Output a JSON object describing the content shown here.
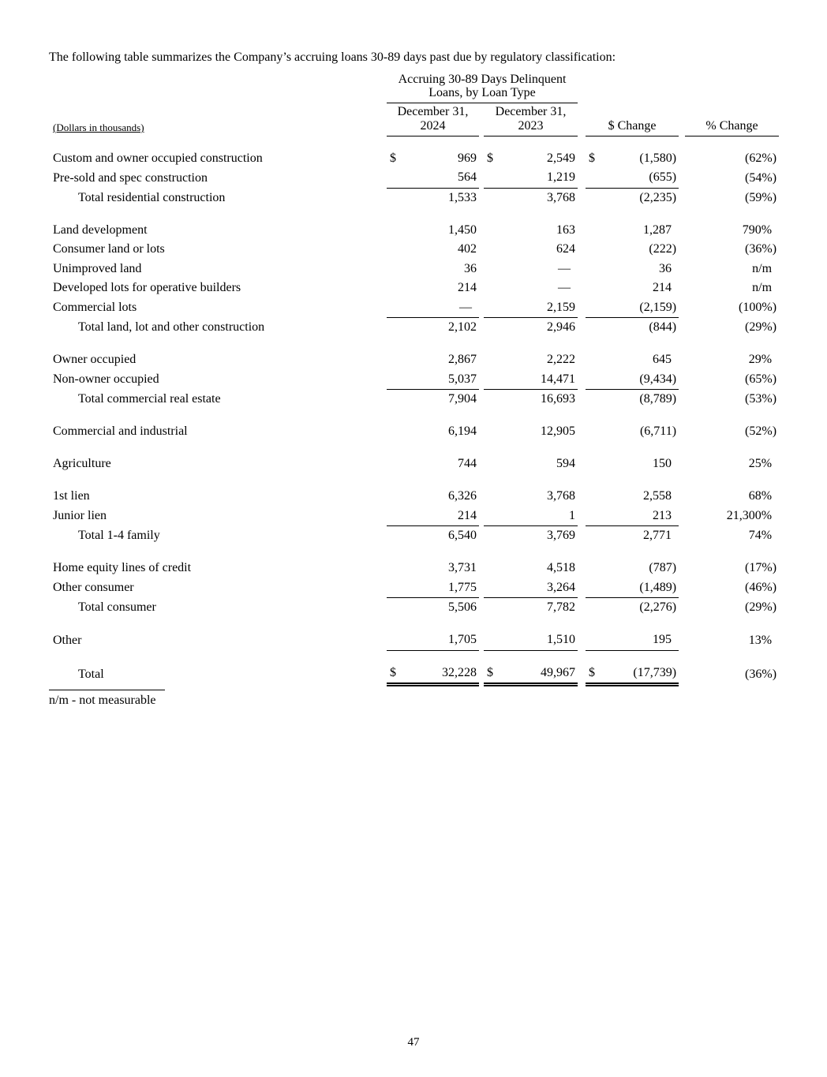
{
  "page": {
    "intro": "The following table summarizes the Company’s accruing loans 30-89 days past due by regulatory classification:",
    "footnote": "n/m - not measurable",
    "page_number": "47",
    "text_color": "#000000"
  },
  "table": {
    "group_header": {
      "line1": "Accruing 30-89 Days Delinquent",
      "line2": "Loans, by Loan Type"
    },
    "left_header": "(Dollars in thousands)",
    "col_headers": [
      {
        "line1": "December 31,",
        "line2": "2024"
      },
      {
        "line1": "December 31,",
        "line2": "2023"
      },
      {
        "label": "$ Change"
      },
      {
        "label": "% Change"
      }
    ],
    "rows": [
      {
        "label": "Custom and owner occupied construction",
        "d1": "$",
        "v1": "969",
        "d2": "$",
        "v2": "2,549",
        "d3": "$",
        "v3": "(1,580)",
        "pct": "(62%)"
      },
      {
        "label": "Pre-sold and spec construction",
        "v1": "564",
        "v2": "1,219",
        "v3": "(655)",
        "pct": "(54%)",
        "rule": "single"
      },
      {
        "label": "Total residential construction",
        "indent": true,
        "v1": "1,533",
        "v2": "3,768",
        "v3": "(2,235)",
        "pct": "(59%)"
      },
      {
        "type": "spacer"
      },
      {
        "label": "Land development",
        "v1": "1,450",
        "v2": "163",
        "v3": "1,287",
        "pct": "790%"
      },
      {
        "label": "Consumer land or lots",
        "v1": "402",
        "v2": "624",
        "v3": "(222)",
        "pct": "(36%)"
      },
      {
        "label": "Unimproved land",
        "v1": "36",
        "v2": "—",
        "v3": "36",
        "pct": "n/m"
      },
      {
        "label": "Developed lots for operative builders",
        "v1": "214",
        "v2": "—",
        "v3": "214",
        "pct": "n/m"
      },
      {
        "label": "Commercial lots",
        "v1": "—",
        "v2": "2,159",
        "v3": "(2,159)",
        "pct": "(100%)",
        "rule": "single"
      },
      {
        "label": "Total land, lot and other construction",
        "indent": true,
        "v1": "2,102",
        "v2": "2,946",
        "v3": "(844)",
        "pct": "(29%)"
      },
      {
        "type": "spacer"
      },
      {
        "label": "Owner occupied",
        "v1": "2,867",
        "v2": "2,222",
        "v3": "645",
        "pct": "29%"
      },
      {
        "label": "Non-owner occupied",
        "v1": "5,037",
        "v2": "14,471",
        "v3": "(9,434)",
        "pct": "(65%)",
        "rule": "single"
      },
      {
        "label": "Total commercial real estate",
        "indent": true,
        "v1": "7,904",
        "v2": "16,693",
        "v3": "(8,789)",
        "pct": "(53%)"
      },
      {
        "type": "spacer"
      },
      {
        "label": "Commercial and industrial",
        "v1": "6,194",
        "v2": "12,905",
        "v3": "(6,711)",
        "pct": "(52%)"
      },
      {
        "type": "spacer"
      },
      {
        "label": "Agriculture",
        "v1": "744",
        "v2": "594",
        "v3": "150",
        "pct": "25%"
      },
      {
        "type": "spacer"
      },
      {
        "label": "1st lien",
        "v1": "6,326",
        "v2": "3,768",
        "v3": "2,558",
        "pct": "68%"
      },
      {
        "label": "Junior lien",
        "v1": "214",
        "v2": "1",
        "v3": "213",
        "pct": "21,300%",
        "rule": "single"
      },
      {
        "label": "Total 1-4 family",
        "indent": true,
        "v1": "6,540",
        "v2": "3,769",
        "v3": "2,771",
        "pct": "74%"
      },
      {
        "type": "spacer"
      },
      {
        "label": "Home equity lines of credit",
        "v1": "3,731",
        "v2": "4,518",
        "v3": "(787)",
        "pct": "(17%)"
      },
      {
        "label": "Other consumer",
        "v1": "1,775",
        "v2": "3,264",
        "v3": "(1,489)",
        "pct": "(46%)",
        "rule": "single"
      },
      {
        "label": "Total consumer",
        "indent": true,
        "v1": "5,506",
        "v2": "7,782",
        "v3": "(2,276)",
        "pct": "(29%)"
      },
      {
        "type": "spacer"
      },
      {
        "label": "Other",
        "v1": "1,705",
        "v2": "1,510",
        "v3": "195",
        "pct": "13%",
        "rule": "single"
      },
      {
        "type": "spacer"
      },
      {
        "label": "Total",
        "indent": true,
        "d1": "$",
        "v1": "32,228",
        "d2": "$",
        "v2": "49,967",
        "d3": "$",
        "v3": "(17,739)",
        "pct": "(36%)",
        "rule": "double"
      }
    ]
  }
}
